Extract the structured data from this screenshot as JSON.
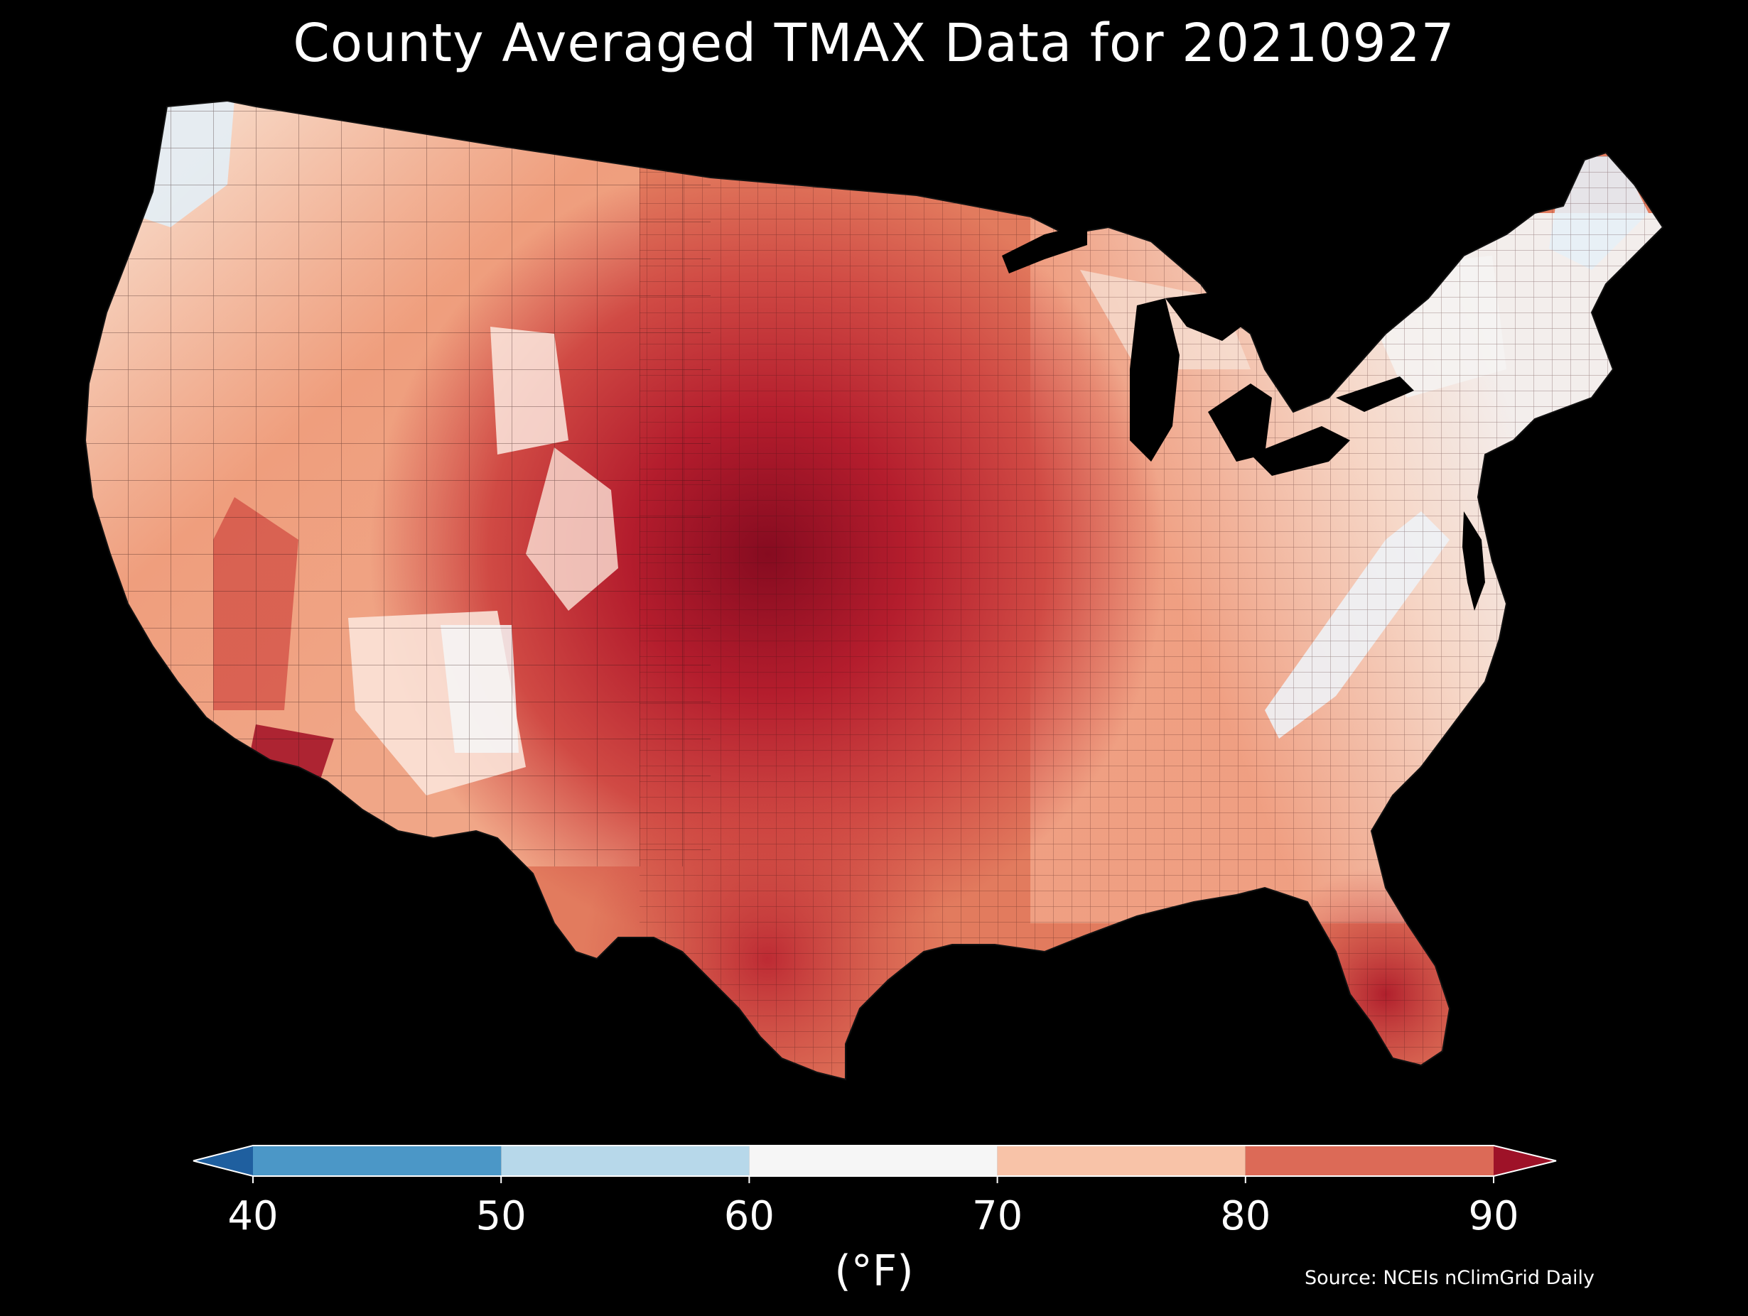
{
  "title": "County Averaged TMAX Data for 20210927",
  "source": "Source: NCEIs nClimGrid Daily",
  "colorbar": {
    "unit_label": "(°F)",
    "ticks": [
      "40",
      "50",
      "60",
      "70",
      "80",
      "90"
    ],
    "bins": [
      {
        "from": 40,
        "to": 50,
        "color": "#4b97c7"
      },
      {
        "from": 50,
        "to": 60,
        "color": "#b7d8ea"
      },
      {
        "from": 60,
        "to": 70,
        "color": "#f6f6f6"
      },
      {
        "from": 70,
        "to": 80,
        "color": "#f8c3a8"
      },
      {
        "from": 80,
        "to": 90,
        "color": "#dc6a57"
      }
    ],
    "under_color": "#1f5f9f",
    "over_color": "#9e1228"
  },
  "colors": {
    "background": "#000000",
    "hot_core": "#8a0d22",
    "county_border": "#222222"
  }
}
